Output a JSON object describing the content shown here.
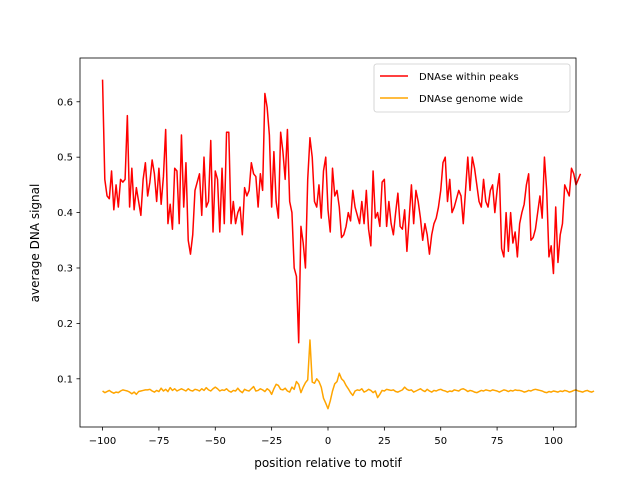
{
  "chart_data": {
    "type": "line",
    "title": "",
    "xlabel": "position relative to motif",
    "ylabel": "average DNA signal",
    "xlim": [
      -110,
      110
    ],
    "ylim": [
      0.013,
      0.679
    ],
    "xticks": [
      -100,
      -75,
      -50,
      -25,
      0,
      25,
      50,
      75,
      100
    ],
    "xtick_labels": [
      "−100",
      "−75",
      "−50",
      "−25",
      "0",
      "25",
      "50",
      "75",
      "100"
    ],
    "yticks": [
      0.1,
      0.2,
      0.3,
      0.4,
      0.5,
      0.6
    ],
    "ytick_labels": [
      "0.1",
      "0.2",
      "0.3",
      "0.4",
      "0.5",
      "0.6"
    ],
    "grid": false,
    "legend_position": "top-right",
    "x_start": -100,
    "x_step": 1,
    "series": [
      {
        "name": "DNAse within peaks",
        "color": "#ff0000",
        "values": [
          0.64,
          0.46,
          0.43,
          0.425,
          0.475,
          0.405,
          0.45,
          0.41,
          0.46,
          0.455,
          0.46,
          0.575,
          0.41,
          0.48,
          0.405,
          0.445,
          0.42,
          0.395,
          0.46,
          0.49,
          0.43,
          0.455,
          0.495,
          0.47,
          0.42,
          0.48,
          0.415,
          0.465,
          0.55,
          0.38,
          0.415,
          0.37,
          0.48,
          0.475,
          0.38,
          0.54,
          0.41,
          0.49,
          0.35,
          0.325,
          0.36,
          0.44,
          0.455,
          0.47,
          0.395,
          0.5,
          0.41,
          0.42,
          0.53,
          0.365,
          0.475,
          0.46,
          0.365,
          0.48,
          0.38,
          0.545,
          0.545,
          0.38,
          0.42,
          0.38,
          0.4,
          0.41,
          0.36,
          0.445,
          0.43,
          0.44,
          0.49,
          0.47,
          0.465,
          0.41,
          0.47,
          0.44,
          0.615,
          0.59,
          0.54,
          0.41,
          0.51,
          0.42,
          0.39,
          0.545,
          0.51,
          0.46,
          0.55,
          0.42,
          0.4,
          0.3,
          0.285,
          0.165,
          0.375,
          0.345,
          0.3,
          0.46,
          0.535,
          0.5,
          0.42,
          0.41,
          0.45,
          0.39,
          0.475,
          0.5,
          0.405,
          0.365,
          0.48,
          0.43,
          0.44,
          0.41,
          0.355,
          0.36,
          0.375,
          0.4,
          0.385,
          0.44,
          0.41,
          0.395,
          0.38,
          0.42,
          0.38,
          0.44,
          0.37,
          0.34,
          0.475,
          0.39,
          0.4,
          0.375,
          0.455,
          0.46,
          0.375,
          0.42,
          0.38,
          0.36,
          0.4,
          0.435,
          0.375,
          0.37,
          0.405,
          0.33,
          0.39,
          0.45,
          0.38,
          0.44,
          0.42,
          0.39,
          0.35,
          0.38,
          0.36,
          0.325,
          0.36,
          0.38,
          0.39,
          0.41,
          0.44,
          0.49,
          0.5,
          0.42,
          0.46,
          0.4,
          0.41,
          0.425,
          0.44,
          0.43,
          0.38,
          0.44,
          0.5,
          0.44,
          0.5,
          0.48,
          0.45,
          0.42,
          0.41,
          0.46,
          0.42,
          0.41,
          0.44,
          0.45,
          0.4,
          0.44,
          0.47,
          0.335,
          0.32,
          0.4,
          0.33,
          0.4,
          0.345,
          0.365,
          0.32,
          0.38,
          0.4,
          0.415,
          0.45,
          0.47,
          0.35,
          0.355,
          0.37,
          0.4,
          0.43,
          0.39,
          0.5,
          0.44,
          0.32,
          0.34,
          0.29,
          0.41,
          0.31,
          0.36,
          0.38,
          0.45,
          0.44,
          0.43,
          0.48,
          0.47,
          0.45,
          0.46,
          0.47
        ]
      },
      {
        "name": "DNAse genome wide",
        "color": "#ffa500",
        "values": [
          0.078,
          0.075,
          0.077,
          0.079,
          0.076,
          0.074,
          0.076,
          0.075,
          0.078,
          0.08,
          0.079,
          0.078,
          0.076,
          0.073,
          0.076,
          0.072,
          0.077,
          0.078,
          0.079,
          0.08,
          0.08,
          0.081,
          0.078,
          0.076,
          0.079,
          0.077,
          0.083,
          0.078,
          0.081,
          0.077,
          0.084,
          0.079,
          0.082,
          0.078,
          0.08,
          0.082,
          0.08,
          0.078,
          0.082,
          0.079,
          0.078,
          0.081,
          0.08,
          0.078,
          0.082,
          0.079,
          0.084,
          0.08,
          0.078,
          0.082,
          0.085,
          0.082,
          0.078,
          0.08,
          0.079,
          0.082,
          0.078,
          0.076,
          0.079,
          0.078,
          0.083,
          0.078,
          0.075,
          0.081,
          0.079,
          0.078,
          0.082,
          0.086,
          0.078,
          0.079,
          0.082,
          0.08,
          0.077,
          0.082,
          0.079,
          0.072,
          0.082,
          0.09,
          0.088,
          0.081,
          0.08,
          0.083,
          0.078,
          0.076,
          0.085,
          0.081,
          0.095,
          0.09,
          0.075,
          0.085,
          0.093,
          0.098,
          0.17,
          0.094,
          0.092,
          0.1,
          0.095,
          0.085,
          0.065,
          0.056,
          0.046,
          0.06,
          0.078,
          0.091,
          0.095,
          0.11,
          0.1,
          0.096,
          0.088,
          0.082,
          0.075,
          0.07,
          0.078,
          0.08,
          0.079,
          0.082,
          0.076,
          0.078,
          0.081,
          0.079,
          0.075,
          0.078,
          0.066,
          0.072,
          0.079,
          0.078,
          0.081,
          0.08,
          0.079,
          0.08,
          0.077,
          0.076,
          0.078,
          0.08,
          0.085,
          0.081,
          0.079,
          0.08,
          0.076,
          0.078,
          0.08,
          0.082,
          0.079,
          0.077,
          0.081,
          0.078,
          0.076,
          0.079,
          0.078,
          0.08,
          0.081,
          0.079,
          0.078,
          0.076,
          0.078,
          0.077,
          0.08,
          0.079,
          0.078,
          0.081,
          0.082,
          0.08,
          0.077,
          0.079,
          0.078,
          0.076,
          0.075,
          0.077,
          0.079,
          0.078,
          0.08,
          0.079,
          0.078,
          0.08,
          0.079,
          0.078,
          0.076,
          0.078,
          0.08,
          0.079,
          0.077,
          0.079,
          0.078,
          0.08,
          0.079,
          0.079,
          0.078,
          0.076,
          0.077,
          0.079,
          0.078,
          0.08,
          0.081,
          0.08,
          0.079,
          0.078,
          0.076,
          0.075,
          0.077,
          0.076,
          0.078,
          0.077,
          0.076,
          0.078,
          0.077,
          0.079,
          0.078,
          0.076,
          0.077,
          0.079,
          0.08,
          0.078,
          0.077,
          0.076,
          0.078,
          0.079,
          0.077,
          0.076,
          0.078
        ]
      }
    ]
  }
}
